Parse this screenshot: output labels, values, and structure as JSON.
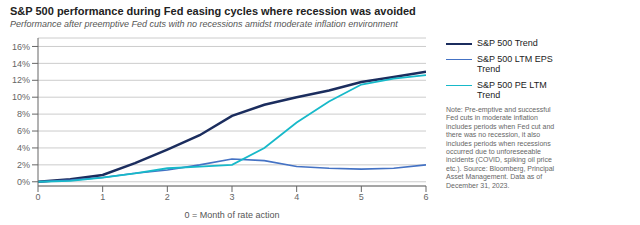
{
  "chart_data": {
    "type": "line",
    "title": "S&P 500 performance during Fed easing cycles where recession was avoided",
    "subtitle": "Performance after preemptive Fed cuts with no recessions amidst moderate inflation environment",
    "xlabel": "0 = Month of rate action",
    "x": [
      0,
      0.5,
      1,
      1.5,
      2,
      2.5,
      3,
      3.5,
      4,
      4.5,
      5,
      5.5,
      6
    ],
    "series": [
      {
        "name": "S&P 500 Trend",
        "color": "#1b2d5e",
        "values": [
          0.0,
          0.003,
          0.008,
          0.022,
          0.038,
          0.055,
          0.078,
          0.091,
          0.1,
          0.108,
          0.118,
          0.124,
          0.13
        ]
      },
      {
        "name": "S&P 500 LTM EPS\nTrend",
        "color": "#4472c4",
        "values": [
          0.0,
          0.002,
          0.005,
          0.01,
          0.014,
          0.02,
          0.027,
          0.025,
          0.018,
          0.016,
          0.015,
          0.016,
          0.02
        ]
      },
      {
        "name": "S&P 500 PE LTM\nTrend",
        "color": "#17b9c9",
        "values": [
          0.0,
          0.001,
          0.005,
          0.01,
          0.016,
          0.018,
          0.02,
          0.04,
          0.07,
          0.095,
          0.115,
          0.122,
          0.126
        ]
      }
    ],
    "xlim": [
      0,
      6
    ],
    "xticks": [
      0,
      1,
      2,
      3,
      4,
      5,
      6
    ],
    "ylim": [
      -0.005,
      0.17
    ],
    "yticks": [
      {
        "value": 0.0,
        "label": "0%"
      },
      {
        "value": 0.02,
        "label": "2%"
      },
      {
        "value": 0.04,
        "label": "4%"
      },
      {
        "value": 0.06,
        "label": "6%"
      },
      {
        "value": 0.08,
        "label": "8%"
      },
      {
        "value": 0.1,
        "label": "10%"
      },
      {
        "value": 0.12,
        "label": "12%"
      },
      {
        "value": 0.14,
        "label": "14%"
      },
      {
        "value": 0.16,
        "label": "16%"
      }
    ],
    "grid": true,
    "legend": "right",
    "annotations": [
      "Note: Pre-emptive and successful\nFed cuts in moderate inflation\nincludes periods when Fed cut and\nthere was no recession, it also\nincludes periods when recessions\noccurred due to unforeseeable\nincidents (COVID, spiking oil price\netc.). Source: Bloomberg, Principal\nAsset Management. Data as of\nDecember 31, 2023."
    ]
  }
}
